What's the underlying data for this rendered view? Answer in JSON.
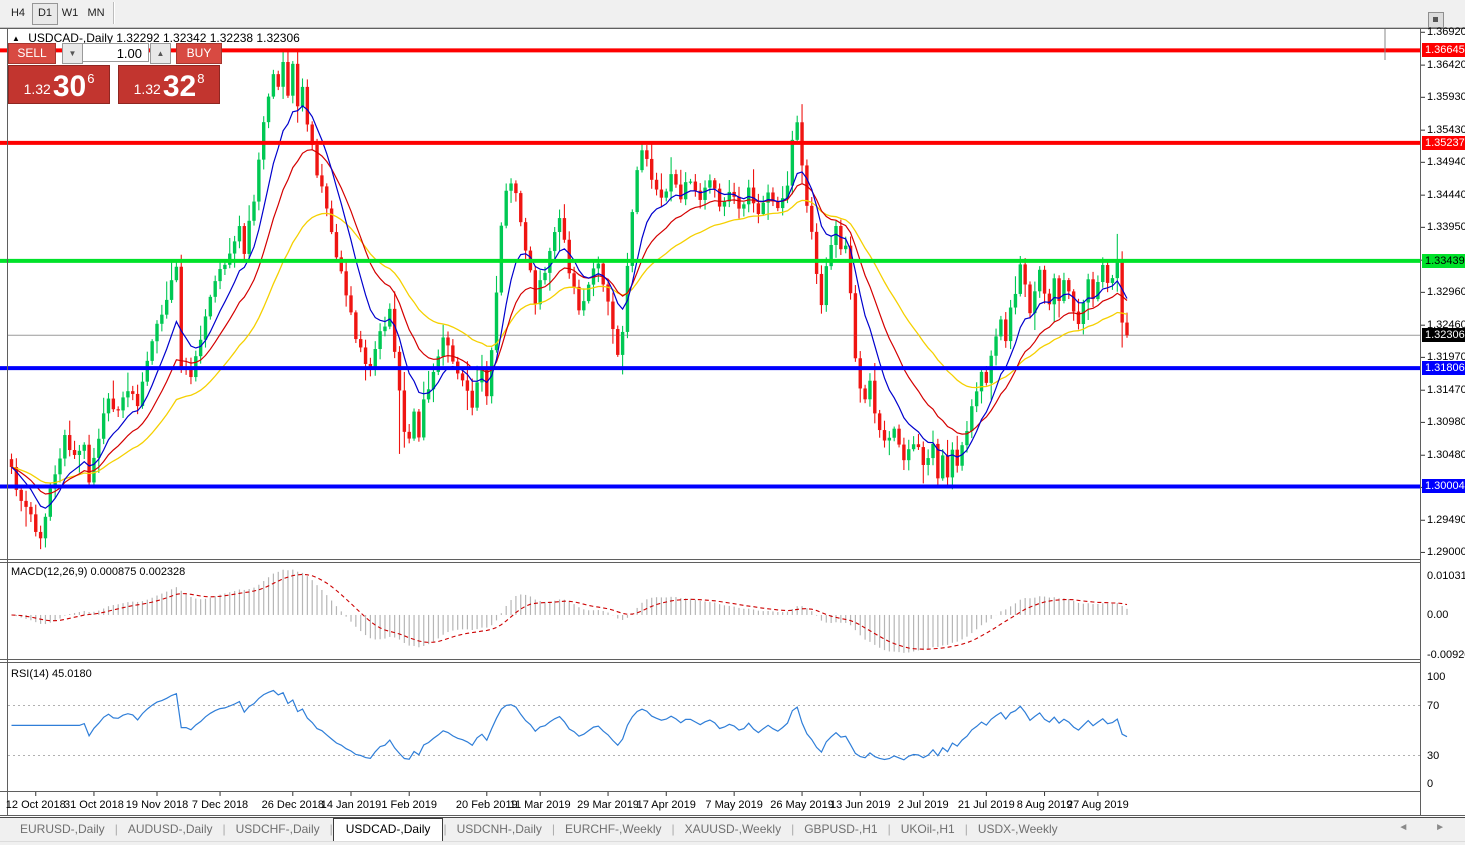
{
  "toolbar": {
    "timeframes": [
      {
        "label": "H4",
        "active": false
      },
      {
        "label": "D1",
        "active": true
      },
      {
        "label": "W1",
        "active": false
      },
      {
        "label": "MN",
        "active": false
      }
    ]
  },
  "chart_header": {
    "collapse_icon": "▲",
    "symbol": "USDCAD-,Daily",
    "ohlc": "1.32292 1.32342 1.32238 1.32306"
  },
  "trade_panel": {
    "sell_label": "SELL",
    "buy_label": "BUY",
    "volume": "1.00",
    "spin_down_icon": "▼",
    "spin_up_icon": "▲",
    "sell_price": {
      "prefix": "1.32",
      "big": "30",
      "sup": "6"
    },
    "buy_price": {
      "prefix": "1.32",
      "big": "32",
      "sup": "8"
    }
  },
  "price_axis": {
    "labels": [
      "1.36920",
      "1.36420",
      "1.35930",
      "1.35430",
      "1.34940",
      "1.34440",
      "1.33950",
      "1.33450",
      "1.32960",
      "1.32460",
      "1.31970",
      "1.31470",
      "1.30980",
      "1.30480",
      "1.29990",
      "1.29490",
      "1.29000"
    ]
  },
  "hlines": [
    {
      "value": 1.36645,
      "label": "1.36645",
      "color": "#fe0000",
      "text": "#ffffff"
    },
    {
      "value": 1.35237,
      "label": "1.35237",
      "color": "#fe0000",
      "text": "#ffffff"
    },
    {
      "value": 1.33439,
      "label": "1.33439",
      "color": "#00e22a",
      "text": "#000000"
    },
    {
      "value": 1.31806,
      "label": "1.31806",
      "color": "#0000fe",
      "text": "#ffffff"
    },
    {
      "value": 1.30004,
      "label": "1.30004",
      "color": "#0000fe",
      "text": "#ffffff"
    }
  ],
  "current_price": {
    "value": 1.32306,
    "label": "1.32306",
    "bg": "#000000",
    "text": "#ffffff"
  },
  "date_axis": [
    {
      "label": "12 Oct 2018",
      "idx": 5
    },
    {
      "label": "31 Oct 2018",
      "idx": 17
    },
    {
      "label": "19 Nov 2018",
      "idx": 30
    },
    {
      "label": "7 Dec 2018",
      "idx": 43
    },
    {
      "label": "26 Dec 2018",
      "idx": 58
    },
    {
      "label": "14 Jan 2019",
      "idx": 70
    },
    {
      "label": "1 Feb 2019",
      "idx": 82
    },
    {
      "label": "20 Feb 2019",
      "idx": 98
    },
    {
      "label": "11 Mar 2019",
      "idx": 109
    },
    {
      "label": "29 Mar 2019",
      "idx": 123
    },
    {
      "label": "17 Apr 2019",
      "idx": 135
    },
    {
      "label": "7 May 2019",
      "idx": 149
    },
    {
      "label": "26 May 2019",
      "idx": 163
    },
    {
      "label": "13 Jun 2019",
      "idx": 175
    },
    {
      "label": "2 Jul 2019",
      "idx": 188
    },
    {
      "label": "21 Jul 2019",
      "idx": 201
    },
    {
      "label": "8 Aug 2019",
      "idx": 213
    },
    {
      "label": "27 Aug 2019",
      "idx": 224
    }
  ],
  "macd_panel": {
    "title": "MACD(12,26,9) 0.000875 0.002328",
    "current_main": 0.000875,
    "current_signal": 0.002328,
    "axis_labels": [
      "0.010311",
      "0.00",
      "-0.009203"
    ],
    "params": {
      "fast": 12,
      "slow": 26,
      "signal": 9
    }
  },
  "rsi_panel": {
    "title": "RSI(14) 45.0180",
    "current": 45.018,
    "period": 14,
    "axis_labels": [
      "100",
      "70",
      "30",
      "0"
    ],
    "level_lines": [
      70,
      30
    ]
  },
  "tabs": {
    "items": [
      {
        "label": "EURUSD-,Daily",
        "active": false
      },
      {
        "label": "AUDUSD-,Daily",
        "active": false
      },
      {
        "label": "USDCHF-,Daily",
        "active": false
      },
      {
        "label": "USDCAD-,Daily",
        "active": true
      },
      {
        "label": "USDCNH-,Daily",
        "active": false
      },
      {
        "label": "EURCHF-,Weekly",
        "active": false
      },
      {
        "label": "XAUUSD-,Weekly",
        "active": false
      },
      {
        "label": "GBPUSD-,H1",
        "active": false
      },
      {
        "label": "UKOil-,H1",
        "active": false
      },
      {
        "label": "USDX-,Weekly",
        "active": false
      }
    ],
    "scroll_left_icon": "◄",
    "scroll_right_icon": "►"
  },
  "colors": {
    "bull": "#00c853",
    "bear": "#ef1512",
    "ma_fast": "#0000cd",
    "ma_mid": "#d40000",
    "ma_slow": "#f5d000",
    "macd_bar": "#b6b6b6",
    "macd_signal": "#cc0000",
    "rsi_line": "#2f7ed8",
    "dotted_level": "#b0b0b0",
    "current_line": "#9a9a9a",
    "frame": "#5f5f5f"
  },
  "chart_data": {
    "type": "candlestick",
    "symbol": "USDCAD-",
    "timeframe": "Daily",
    "ohlc_display": {
      "open": "1.32292",
      "high": "1.32342",
      "low": "1.32238",
      "close": "1.32306"
    },
    "price_range": {
      "top": 1.3697,
      "bottom": 1.289
    },
    "horizontal_levels": [
      1.36645,
      1.35237,
      1.33439,
      1.31806,
      1.30004
    ],
    "moving_averages": [
      {
        "period": 9
      },
      {
        "period": 18
      },
      {
        "period": 36
      }
    ],
    "candles": {
      "count": 231,
      "close_anchors": [
        [
          0,
          1.303
        ],
        [
          2,
          1.2975
        ],
        [
          4,
          1.295
        ],
        [
          6,
          1.2928
        ],
        [
          8,
          1.2992
        ],
        [
          11,
          1.3078
        ],
        [
          13,
          1.304
        ],
        [
          15,
          1.3068
        ],
        [
          16,
          1.3008
        ],
        [
          18,
          1.308
        ],
        [
          20,
          1.3128
        ],
        [
          22,
          1.3108
        ],
        [
          24,
          1.315
        ],
        [
          26,
          1.3128
        ],
        [
          28,
          1.319
        ],
        [
          30,
          1.324
        ],
        [
          32,
          1.329
        ],
        [
          34,
          1.3338
        ],
        [
          35,
          1.3178
        ],
        [
          37,
          1.3168
        ],
        [
          39,
          1.3232
        ],
        [
          41,
          1.3282
        ],
        [
          43,
          1.3328
        ],
        [
          45,
          1.3362
        ],
        [
          47,
          1.3392
        ],
        [
          48,
          1.3362
        ],
        [
          50,
          1.344
        ],
        [
          52,
          1.3555
        ],
        [
          54,
          1.3632
        ],
        [
          55,
          1.3605
        ],
        [
          56,
          1.365
        ],
        [
          57,
          1.3596
        ],
        [
          58,
          1.3638
        ],
        [
          59,
          1.358
        ],
        [
          60,
          1.3615
        ],
        [
          61,
          1.3555
        ],
        [
          63,
          1.348
        ],
        [
          65,
          1.342
        ],
        [
          67,
          1.335
        ],
        [
          69,
          1.329
        ],
        [
          71,
          1.323
        ],
        [
          73,
          1.3185
        ],
        [
          74,
          1.317
        ],
        [
          76,
          1.3236
        ],
        [
          78,
          1.3268
        ],
        [
          79,
          1.321
        ],
        [
          80,
          1.315
        ],
        [
          81,
          1.309
        ],
        [
          82,
          1.307
        ],
        [
          83,
          1.3106
        ],
        [
          84,
          1.3078
        ],
        [
          85,
          1.3125
        ],
        [
          87,
          1.318
        ],
        [
          89,
          1.3225
        ],
        [
          91,
          1.319
        ],
        [
          93,
          1.3158
        ],
        [
          95,
          1.3125
        ],
        [
          97,
          1.318
        ],
        [
          98,
          1.313
        ],
        [
          100,
          1.329
        ],
        [
          101,
          1.3395
        ],
        [
          102,
          1.3445
        ],
        [
          103,
          1.347
        ],
        [
          104,
          1.344
        ],
        [
          106,
          1.336
        ],
        [
          108,
          1.3285
        ],
        [
          110,
          1.333
        ],
        [
          112,
          1.3395
        ],
        [
          113,
          1.3412
        ],
        [
          115,
          1.333
        ],
        [
          117,
          1.327
        ],
        [
          119,
          1.331
        ],
        [
          121,
          1.334
        ],
        [
          123,
          1.328
        ],
        [
          125,
          1.32
        ],
        [
          126,
          1.3242
        ],
        [
          127,
          1.333
        ],
        [
          128,
          1.342
        ],
        [
          129,
          1.348
        ],
        [
          130,
          1.3512
        ],
        [
          132,
          1.347
        ],
        [
          134,
          1.344
        ],
        [
          136,
          1.3472
        ],
        [
          138,
          1.3445
        ],
        [
          140,
          1.347
        ],
        [
          142,
          1.344
        ],
        [
          144,
          1.3462
        ],
        [
          146,
          1.343
        ],
        [
          148,
          1.3452
        ],
        [
          150,
          1.3425
        ],
        [
          152,
          1.3452
        ],
        [
          154,
          1.342
        ],
        [
          156,
          1.3445
        ],
        [
          158,
          1.342
        ],
        [
          160,
          1.3465
        ],
        [
          161,
          1.352
        ],
        [
          162,
          1.355
        ],
        [
          163,
          1.3495
        ],
        [
          164,
          1.3435
        ],
        [
          165,
          1.339
        ],
        [
          166,
          1.333
        ],
        [
          167,
          1.3285
        ],
        [
          168,
          1.333
        ],
        [
          169,
          1.3368
        ],
        [
          170,
          1.3395
        ],
        [
          171,
          1.336
        ],
        [
          172,
          1.3365
        ],
        [
          173,
          1.329
        ],
        [
          174,
          1.32
        ],
        [
          175,
          1.3155
        ],
        [
          176,
          1.313
        ],
        [
          177,
          1.3158
        ],
        [
          178,
          1.3105
        ],
        [
          179,
          1.3085
        ],
        [
          180,
          1.3065
        ],
        [
          182,
          1.3092
        ],
        [
          184,
          1.3045
        ],
        [
          186,
          1.3072
        ],
        [
          188,
          1.3035
        ],
        [
          190,
          1.3058
        ],
        [
          191,
          1.302
        ],
        [
          192,
          1.3048
        ],
        [
          193,
          1.3012
        ],
        [
          194,
          1.3052
        ],
        [
          195,
          1.303
        ],
        [
          196,
          1.3062
        ],
        [
          197,
          1.3088
        ],
        [
          198,
          1.3122
        ],
        [
          199,
          1.3152
        ],
        [
          200,
          1.3172
        ],
        [
          201,
          1.3155
        ],
        [
          202,
          1.3192
        ],
        [
          203,
          1.3222
        ],
        [
          204,
          1.3252
        ],
        [
          205,
          1.323
        ],
        [
          206,
          1.3275
        ],
        [
          207,
          1.3302
        ],
        [
          208,
          1.334
        ],
        [
          209,
          1.3302
        ],
        [
          210,
          1.3272
        ],
        [
          211,
          1.33
        ],
        [
          212,
          1.333
        ],
        [
          213,
          1.3302
        ],
        [
          214,
          1.3272
        ],
        [
          215,
          1.331
        ],
        [
          216,
          1.329
        ],
        [
          217,
          1.3322
        ],
        [
          218,
          1.33
        ],
        [
          219,
          1.327
        ],
        [
          220,
          1.3242
        ],
        [
          221,
          1.328
        ],
        [
          222,
          1.3312
        ],
        [
          223,
          1.329
        ],
        [
          224,
          1.331
        ],
        [
          225,
          1.3332
        ],
        [
          226,
          1.3302
        ],
        [
          227,
          1.3322
        ],
        [
          228,
          1.3345
        ],
        [
          229,
          1.325
        ],
        [
          230,
          1.32306
        ]
      ],
      "wick_overrides": {
        "6": {
          "lo": 1.2905
        },
        "56": {
          "hi": 1.36645
        },
        "80": {
          "lo": 1.305
        },
        "162": {
          "hi": 1.3565
        },
        "193": {
          "lo": 1.2999
        },
        "228": {
          "hi": 1.3385
        },
        "229": {
          "lo": 1.3212
        }
      }
    }
  }
}
